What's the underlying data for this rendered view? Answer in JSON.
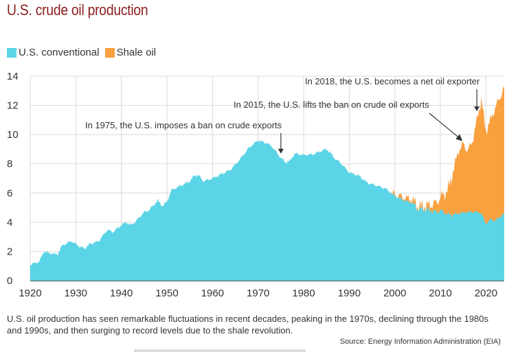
{
  "chart_data": {
    "type": "area",
    "stacked": true,
    "title": "U.S. crude oil production",
    "xlim": [
      1920,
      2024
    ],
    "ylim": [
      0,
      14
    ],
    "x_ticks": [
      1920,
      1930,
      1940,
      1950,
      1960,
      1970,
      1980,
      1990,
      2000,
      2010,
      2020
    ],
    "y_ticks": [
      0,
      2,
      4,
      6,
      8,
      10,
      12,
      14
    ],
    "grid": true,
    "legend_position": "top-left",
    "series": [
      {
        "name": "U.S. conventional",
        "color": "#5ad4e6",
        "points": [
          [
            1920,
            1.1
          ],
          [
            1922,
            1.3
          ],
          [
            1923,
            2.0
          ],
          [
            1924,
            1.9
          ],
          [
            1926,
            1.8
          ],
          [
            1927,
            2.4
          ],
          [
            1929,
            2.7
          ],
          [
            1930,
            2.5
          ],
          [
            1931,
            2.3
          ],
          [
            1932,
            2.2
          ],
          [
            1933,
            2.5
          ],
          [
            1935,
            2.7
          ],
          [
            1937,
            3.5
          ],
          [
            1938,
            3.3
          ],
          [
            1940,
            3.8
          ],
          [
            1941,
            4.0
          ],
          [
            1942,
            3.8
          ],
          [
            1943,
            4.0
          ],
          [
            1945,
            4.7
          ],
          [
            1946,
            4.8
          ],
          [
            1948,
            5.5
          ],
          [
            1949,
            5.1
          ],
          [
            1950,
            5.4
          ],
          [
            1951,
            6.2
          ],
          [
            1953,
            6.5
          ],
          [
            1955,
            6.8
          ],
          [
            1956,
            7.2
          ],
          [
            1957,
            7.2
          ],
          [
            1958,
            6.8
          ],
          [
            1960,
            7.0
          ],
          [
            1962,
            7.3
          ],
          [
            1964,
            7.6
          ],
          [
            1966,
            8.3
          ],
          [
            1968,
            9.1
          ],
          [
            1970,
            9.6
          ],
          [
            1971,
            9.5
          ],
          [
            1972,
            9.4
          ],
          [
            1973,
            9.2
          ],
          [
            1974,
            8.8
          ],
          [
            1975,
            8.4
          ],
          [
            1976,
            8.1
          ],
          [
            1977,
            8.2
          ],
          [
            1978,
            8.7
          ],
          [
            1980,
            8.6
          ],
          [
            1982,
            8.65
          ],
          [
            1984,
            8.9
          ],
          [
            1985,
            9.0
          ],
          [
            1986,
            8.7
          ],
          [
            1987,
            8.3
          ],
          [
            1988,
            8.1
          ],
          [
            1990,
            7.4
          ],
          [
            1992,
            7.2
          ],
          [
            1994,
            6.7
          ],
          [
            1996,
            6.5
          ],
          [
            1998,
            6.3
          ],
          [
            2000,
            5.8
          ],
          [
            2002,
            5.5
          ],
          [
            2004,
            5.3
          ],
          [
            2005,
            4.9
          ],
          [
            2006,
            4.9
          ],
          [
            2008,
            4.8
          ],
          [
            2009,
            4.7
          ],
          [
            2010,
            4.8
          ],
          [
            2012,
            4.5
          ],
          [
            2014,
            4.6
          ],
          [
            2016,
            4.7
          ],
          [
            2018,
            4.7
          ],
          [
            2019,
            4.6
          ],
          [
            2020,
            3.9
          ],
          [
            2021,
            4.2
          ],
          [
            2022,
            4.1
          ],
          [
            2024,
            4.6
          ]
        ]
      },
      {
        "name": "Shale oil",
        "color": "#f9a03f",
        "points": [
          [
            1920,
            0
          ],
          [
            1999,
            0
          ],
          [
            2000,
            0.1
          ],
          [
            2002,
            0.2
          ],
          [
            2004,
            0.2
          ],
          [
            2006,
            0.2
          ],
          [
            2008,
            0.4
          ],
          [
            2009,
            0.6
          ],
          [
            2010,
            0.9
          ],
          [
            2011,
            1.3
          ],
          [
            2012,
            2.0
          ],
          [
            2013,
            3.2
          ],
          [
            2014,
            4.3
          ],
          [
            2015,
            4.7
          ],
          [
            2016,
            4.2
          ],
          [
            2017,
            4.8
          ],
          [
            2018,
            6.3
          ],
          [
            2019,
            7.8
          ],
          [
            2020,
            6.3
          ],
          [
            2021,
            6.8
          ],
          [
            2022,
            7.7
          ],
          [
            2024,
            8.6
          ]
        ]
      }
    ],
    "annotations": [
      {
        "text": "In 1975, the U.S. imposes a ban on crude exports",
        "year": 1975,
        "value": 8.7
      },
      {
        "text": "In 2015, the U.S. lifts the ban on crude oil exports",
        "year": 2015,
        "value": 9.6
      },
      {
        "text": "In 2018, the U.S. becomes a net oil exporter",
        "year": 2018,
        "value": 11.6
      }
    ]
  },
  "caption": "U.S. oil production has seen remarkable fluctuations in recent decades, peaking in the 1970s, declining through the 1980s and 1990s, and then surging to record levels due to the shale revolution.",
  "source": "Source: Energy Information Administration (EIA)"
}
